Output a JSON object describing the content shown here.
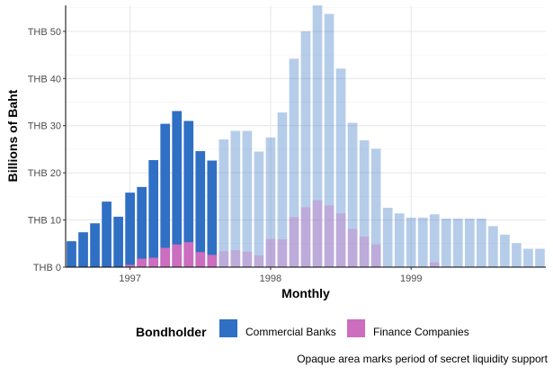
{
  "chart_data": {
    "type": "bar",
    "title": "",
    "xlabel": "Monthly",
    "ylabel": "Billions of Baht",
    "ylim": [
      0,
      55.5
    ],
    "y_ticks": [
      {
        "value": 0,
        "label": "THB 0"
      },
      {
        "value": 10,
        "label": "THB 10"
      },
      {
        "value": 20,
        "label": "THB 20"
      },
      {
        "value": 30,
        "label": "THB 30"
      },
      {
        "value": 40,
        "label": "THB 40"
      },
      {
        "value": 50,
        "label": "THB 50"
      }
    ],
    "x_ticks": [
      {
        "date": "1997-01",
        "label": "1997"
      },
      {
        "date": "1998-01",
        "label": "1998"
      },
      {
        "date": "1999-01",
        "label": "1999"
      }
    ],
    "x_range": [
      "1996-08",
      "1999-12"
    ],
    "months": [
      "1996-08",
      "1996-09",
      "1996-10",
      "1996-11",
      "1996-12",
      "1997-01",
      "1997-02",
      "1997-03",
      "1997-04",
      "1997-05",
      "1997-06",
      "1997-07",
      "1997-08",
      "1997-09",
      "1997-10",
      "1997-11",
      "1997-12",
      "1998-01",
      "1998-02",
      "1998-03",
      "1998-04",
      "1998-05",
      "1998-06",
      "1998-07",
      "1998-08",
      "1998-09",
      "1998-10",
      "1998-11",
      "1998-12",
      "1999-01",
      "1999-02",
      "1999-03",
      "1999-04",
      "1999-05",
      "1999-06",
      "1999-07",
      "1999-08",
      "1999-09",
      "1999-10",
      "1999-11",
      "1999-12"
    ],
    "series": [
      {
        "name": "Commercial Banks",
        "color": "#2f6fc4",
        "values": [
          5.5,
          7.4,
          9.3,
          13.9,
          10.7,
          15.8,
          17.0,
          22.7,
          30.4,
          33.1,
          31.0,
          24.6,
          22.6,
          27.1,
          28.9,
          28.9,
          24.5,
          27.5,
          32.8,
          44.2,
          50.0,
          55.5,
          53.7,
          42.1,
          30.6,
          26.9,
          25.1,
          12.6,
          11.4,
          10.5,
          10.5,
          11.2,
          10.3,
          10.3,
          10.3,
          10.3,
          8.7,
          6.9,
          5.1,
          3.9,
          3.9
        ]
      },
      {
        "name": "Finance Companies",
        "color": "#cc6dbf",
        "values": [
          0,
          0,
          0,
          0,
          0,
          0.5,
          1.8,
          2.0,
          4.1,
          4.8,
          5.3,
          3.2,
          2.6,
          3.4,
          3.6,
          3.3,
          2.5,
          6.0,
          5.9,
          10.6,
          12.7,
          14.2,
          13.1,
          11.4,
          8.1,
          6.5,
          4.8,
          0,
          0,
          0,
          0,
          1.0,
          0,
          0,
          0,
          0,
          0,
          0,
          0,
          0,
          0
        ]
      }
    ],
    "opaque_period": [
      "1996-08",
      "1997-08"
    ],
    "grid": true,
    "legend": {
      "title": "Bondholder",
      "position": "bottom"
    },
    "caption": "Opaque area marks period of secret liquidity support"
  }
}
